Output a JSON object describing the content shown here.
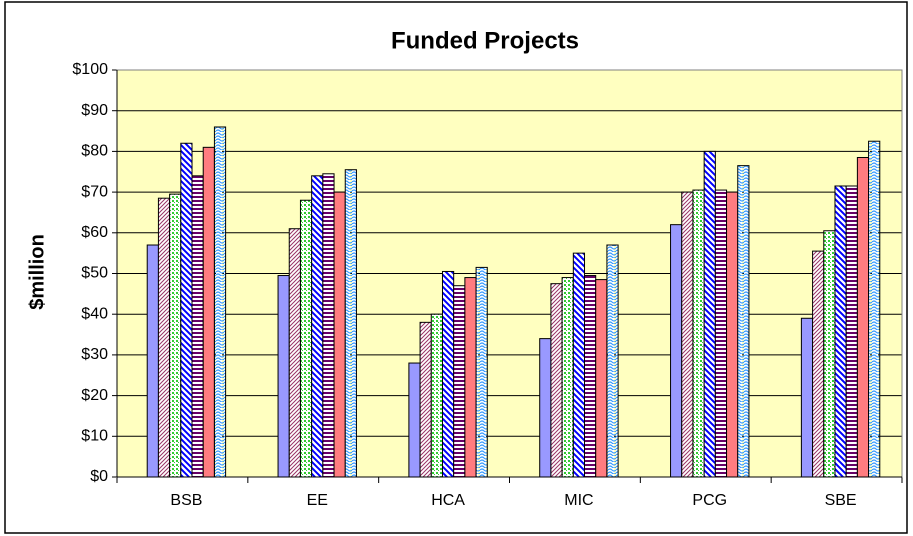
{
  "chart_data": {
    "type": "bar",
    "title": "Funded Projects",
    "y_label": "$million",
    "categories": [
      "BSB",
      "EE",
      "HCA",
      "MIC",
      "PCG",
      "SBE"
    ],
    "series": [
      {
        "color": "#9999ff",
        "pattern": "solid",
        "values": [
          57,
          49.5,
          28,
          34,
          62,
          39
        ]
      },
      {
        "color": "#993366",
        "pattern": "diagonal",
        "values": [
          68.5,
          61,
          38,
          47.5,
          70,
          55.5
        ]
      },
      {
        "color": "#33cc33",
        "pattern": "dots",
        "values": [
          69.5,
          68,
          40,
          49,
          70.5,
          60.5
        ]
      },
      {
        "color": "#0000ff",
        "pattern": "wide-diagonal",
        "values": [
          82,
          74,
          50.5,
          55,
          80,
          71.5
        ]
      },
      {
        "color": "#660066",
        "pattern": "horizontal",
        "values": [
          74,
          74.5,
          47,
          49.5,
          70.5,
          71.5
        ]
      },
      {
        "color": "#ff7c80",
        "pattern": "solid",
        "values": [
          81,
          70,
          49,
          48.5,
          70,
          78.5
        ]
      },
      {
        "color": "#3399ff",
        "pattern": "wave",
        "values": [
          86,
          75.5,
          51.5,
          57,
          76.5,
          82.5
        ]
      }
    ],
    "ylim": [
      0,
      100
    ],
    "yticks": [
      {
        "value": 0,
        "label": "$0"
      },
      {
        "value": 10,
        "label": "$10"
      },
      {
        "value": 20,
        "label": "$20"
      },
      {
        "value": 30,
        "label": "$30"
      },
      {
        "value": 40,
        "label": "$40"
      },
      {
        "value": 50,
        "label": "$50"
      },
      {
        "value": 60,
        "label": "$60"
      },
      {
        "value": 70,
        "label": "$70"
      },
      {
        "value": 80,
        "label": "$80"
      },
      {
        "value": 90,
        "label": "$90"
      },
      {
        "value": 100,
        "label": "$100"
      }
    ],
    "grid": true,
    "plot_background": "#ffffc0"
  }
}
